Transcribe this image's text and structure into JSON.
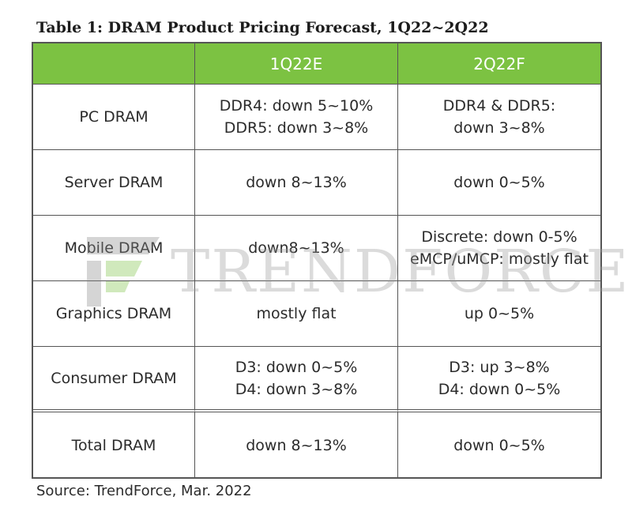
{
  "title": "Table 1: DRAM Product Pricing Forecast, 1Q22~2Q22",
  "columns": [
    "",
    "1Q22E",
    "2Q22F"
  ],
  "rows": [
    {
      "product": "PC DRAM",
      "q1": [
        "DDR4: down 5~10%",
        "DDR5: down 3~8%"
      ],
      "q2": [
        "DDR4 & DDR5:",
        "down 3~8%"
      ]
    },
    {
      "product": "Server DRAM",
      "q1": [
        "down 8~13%"
      ],
      "q2": [
        "down 0~5%"
      ]
    },
    {
      "product": "Mobile DRAM",
      "q1": [
        "down8~13%"
      ],
      "q2": [
        "Discrete: down 0-5%",
        "eMCP/uMCP: mostly flat"
      ]
    },
    {
      "product": "Graphics DRAM",
      "q1": [
        "mostly flat"
      ],
      "q2": [
        "up 0~5%"
      ]
    },
    {
      "product": "Consumer DRAM",
      "q1": [
        "D3: down 0~5%",
        "D4: down 3~8%"
      ],
      "q2": [
        "D3: up 3~8%",
        "D4: down 0~5%"
      ]
    },
    {
      "product": "Total DRAM",
      "q1": [
        "down 8~13%"
      ],
      "q2": [
        "down 0~5%"
      ]
    }
  ],
  "watermark": "TRENDFORCE",
  "source": "Source: TrendForce, Mar. 2022",
  "colors": {
    "header_bg": "#7cc242",
    "header_text": "#ffffff",
    "border": "#555555"
  }
}
